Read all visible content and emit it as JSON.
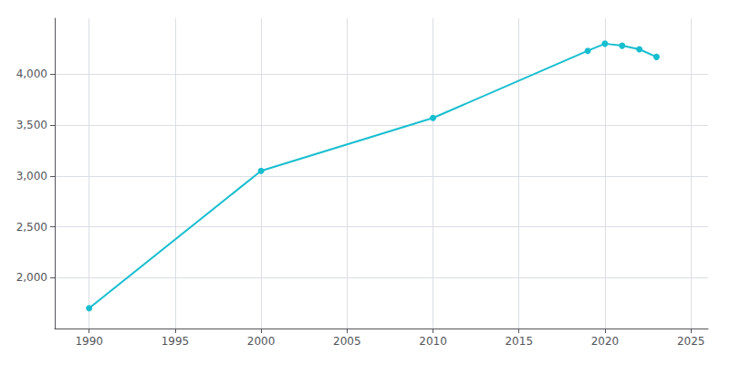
{
  "chart_data": {
    "type": "line",
    "x": [
      1990,
      2000,
      2010,
      2019,
      2020,
      2021,
      2022,
      2023
    ],
    "values": [
      1700,
      3050,
      3570,
      4230,
      4300,
      4280,
      4245,
      4170
    ],
    "color": "#17BECF",
    "marker": "circle",
    "xlim": [
      1988,
      2026
    ],
    "ylim": [
      1500,
      4550
    ],
    "xticks": [
      1990,
      1995,
      2000,
      2005,
      2010,
      2015,
      2020,
      2025
    ],
    "yticks": [
      {
        "value": 2000,
        "label": "2,000"
      },
      {
        "value": 2500,
        "label": "2,500"
      },
      {
        "value": 3000,
        "label": "3,000"
      },
      {
        "value": 3500,
        "label": "3,500"
      },
      {
        "value": 4000,
        "label": "4,000"
      }
    ],
    "grid": true
  }
}
